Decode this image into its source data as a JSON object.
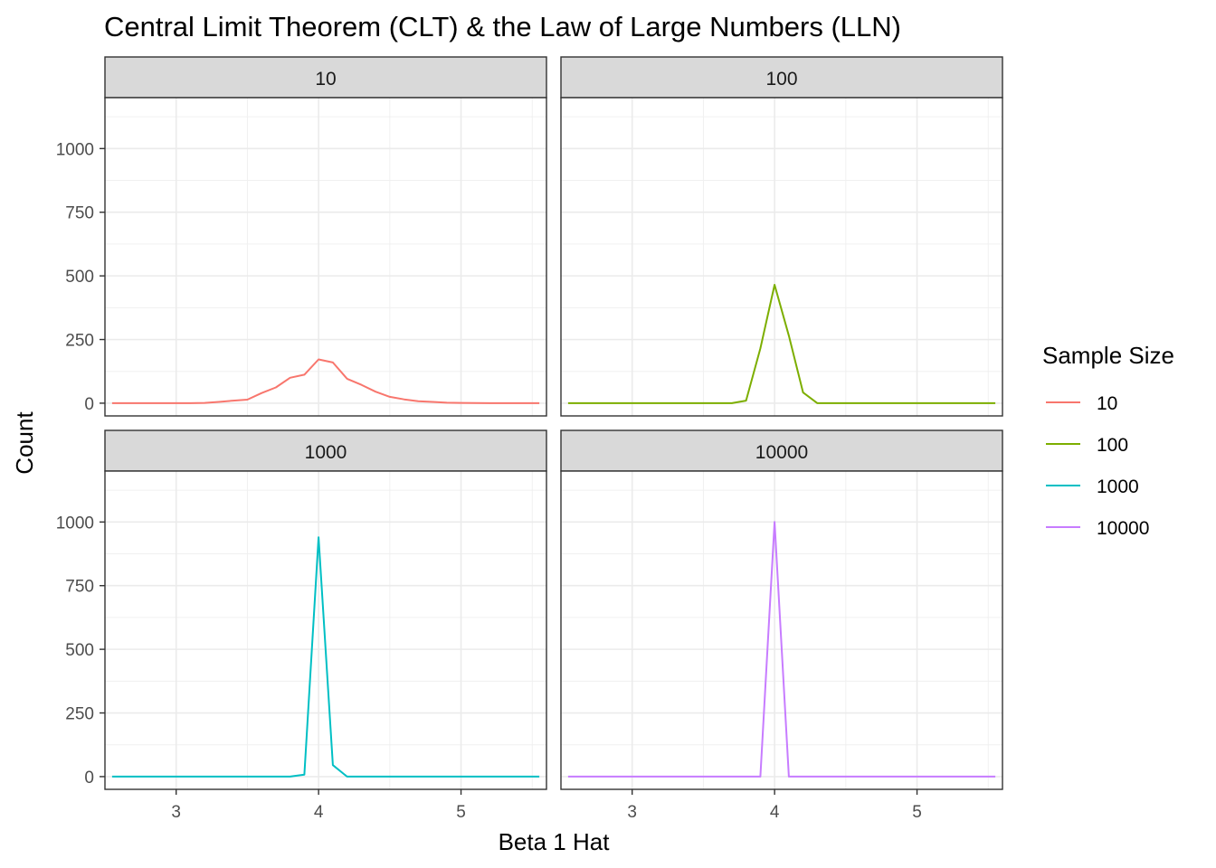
{
  "chart_data": {
    "type": "line",
    "title": "Central Limit Theorem (CLT) & the Law of Large Numbers (LLN)",
    "xlabel": "Beta 1 Hat",
    "ylabel": "Count",
    "xlim": [
      2.5,
      5.6
    ],
    "ylim": [
      -50,
      1200
    ],
    "x_ticks": [
      3,
      4,
      5
    ],
    "y_ticks": [
      0,
      250,
      500,
      750,
      1000
    ],
    "x_tick_labels": [
      "3",
      "4",
      "5"
    ],
    "y_tick_labels": [
      "0",
      "250",
      "500",
      "750",
      "1000"
    ],
    "grid": true,
    "facet_by": "Sample Size",
    "legend": {
      "title": "Sample Size",
      "position": "right",
      "entries": [
        {
          "label": "10",
          "color": "#F8766D"
        },
        {
          "label": "100",
          "color": "#7CAE00"
        },
        {
          "label": "1000",
          "color": "#00BFC4"
        },
        {
          "label": "10000",
          "color": "#C77CFF"
        }
      ]
    },
    "panels": [
      {
        "strip": "10",
        "color": "#F8766D",
        "x": [
          2.55,
          2.7,
          2.9,
          3.1,
          3.2,
          3.3,
          3.4,
          3.5,
          3.6,
          3.7,
          3.8,
          3.9,
          4.0,
          4.1,
          4.2,
          4.3,
          4.4,
          4.5,
          4.6,
          4.7,
          4.8,
          4.9,
          5.0,
          5.2,
          5.4,
          5.55
        ],
        "y": [
          0,
          0,
          0,
          0,
          1,
          5,
          10,
          14,
          40,
          62,
          100,
          112,
          172,
          160,
          96,
          72,
          45,
          25,
          15,
          8,
          5,
          2,
          1,
          0,
          0,
          0
        ]
      },
      {
        "strip": "100",
        "color": "#7CAE00",
        "x": [
          2.55,
          3.0,
          3.5,
          3.7,
          3.8,
          3.9,
          4.0,
          4.1,
          4.2,
          4.3,
          4.5,
          5.0,
          5.55
        ],
        "y": [
          0,
          0,
          0,
          0,
          10,
          215,
          465,
          265,
          42,
          0,
          0,
          0,
          0
        ],
        "_y_note": null
      },
      {
        "strip": "1000",
        "color": "#00BFC4",
        "x": [
          2.55,
          3.0,
          3.5,
          3.8,
          3.9,
          4.0,
          4.1,
          4.2,
          4.3,
          4.5,
          5.0,
          5.55
        ],
        "y": [
          0,
          0,
          0,
          0,
          8,
          940,
          45,
          0,
          0,
          0,
          0,
          0
        ]
      },
      {
        "strip": "10000",
        "color": "#C77CFF",
        "x": [
          2.55,
          3.0,
          3.5,
          3.8,
          3.9,
          4.0,
          4.1,
          4.2,
          4.5,
          5.0,
          5.55
        ],
        "y": [
          0,
          0,
          0,
          0,
          0,
          1000,
          0,
          0,
          0,
          0,
          0
        ]
      }
    ]
  }
}
